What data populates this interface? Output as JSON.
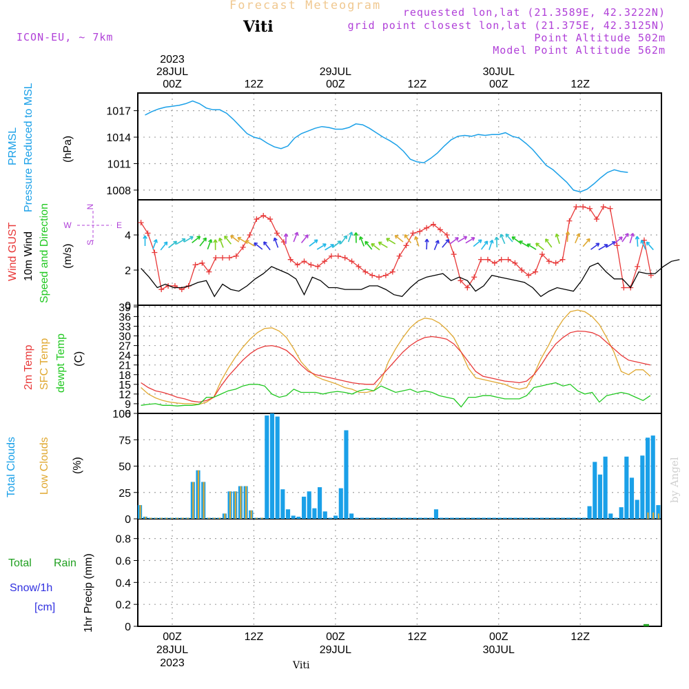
{
  "header": {
    "title": "Forecast Meteogram",
    "station": "Viti",
    "model": "ICON-EU, ~ 7km",
    "requested": "requested lon,lat (21.3589E, 42.3222N)",
    "gridpoint": "grid point closest lon,lat (21.375E, 42.3125N)",
    "point_alt": "Point Altitude 502m",
    "model_alt": "Model Point Altitude 562m",
    "credit": "by Angel",
    "footer_station": "Viti"
  },
  "time_axis": {
    "top": [
      {
        "hour": "00Z",
        "date": "28JUL",
        "year": "2023"
      },
      {
        "hour": "12Z",
        "date": "",
        "year": ""
      },
      {
        "hour": "00Z",
        "date": "29JUL",
        "year": ""
      },
      {
        "hour": "12Z",
        "date": "",
        "year": ""
      },
      {
        "hour": "00Z",
        "date": "30JUL",
        "year": ""
      },
      {
        "hour": "12Z",
        "date": "",
        "year": ""
      }
    ],
    "bottom": [
      {
        "hour": "00Z",
        "date": "28JUL",
        "year": "2023"
      },
      {
        "hour": "12Z",
        "date": "",
        "year": ""
      },
      {
        "hour": "00Z",
        "date": "29JUL",
        "year": ""
      },
      {
        "hour": "12Z",
        "date": "",
        "year": ""
      },
      {
        "hour": "00Z",
        "date": "30JUL",
        "year": ""
      },
      {
        "hour": "12Z",
        "date": "",
        "year": ""
      }
    ]
  },
  "colors": {
    "pressure": "#1aa0e8",
    "gust": "#e83838",
    "wind": "#000000",
    "temp2m": "#e83838",
    "sfctemp": "#e0a830",
    "dewpt": "#20c820",
    "total_cloud": "#1aa0e8",
    "low_cloud": "#e0a830",
    "rain": "#20a020",
    "snow": "#3030e0",
    "grid": "#a0a0a0"
  },
  "panels": {
    "pressure": {
      "label1": "PRMSL",
      "label2": "Pressure Reduced to MSL",
      "unit": "(hPa)"
    },
    "wind": {
      "label1": "Wind GUST",
      "label2": "10m Wind",
      "label3": "Speed and Direction",
      "unit": "(m/s)",
      "compass_n": "N",
      "compass_s": "S",
      "compass_w": "W",
      "compass_e": "E"
    },
    "temp": {
      "label1": "2m Temp",
      "label2": "SFC Temp",
      "label3": "dewpt Temp",
      "unit": "(C)"
    },
    "cloud": {
      "label1": "Total Clouds",
      "label2": "Low Clouds",
      "unit": "(%)"
    },
    "precip": {
      "label1": "Total",
      "label2": "Rain",
      "label3": "Snow/1h",
      "label4": "[cm]",
      "unit": "1hr Precip (mm)"
    }
  },
  "chart_data": [
    {
      "type": "line",
      "title": "PRMSL Pressure Reduced to MSL",
      "ylabel": "(hPa)",
      "ylim": [
        1006.9,
        1019.0
      ],
      "yticks": [
        1008,
        1011,
        1014,
        1017
      ],
      "x_hours": [
        -4,
        -3,
        -2,
        -1,
        0,
        1,
        2,
        3,
        4,
        5,
        6,
        7,
        8,
        9,
        10,
        11,
        12,
        13,
        14,
        15,
        16,
        17,
        18,
        19,
        20,
        21,
        22,
        23,
        24,
        25,
        26,
        27,
        28,
        29,
        30,
        31,
        32,
        33,
        34,
        35,
        36,
        37,
        38,
        39,
        40,
        41,
        42,
        43,
        44,
        45,
        46,
        47,
        48,
        49,
        50,
        51,
        52,
        53,
        54,
        55,
        56,
        57,
        58,
        59,
        60,
        61,
        62,
        63,
        64,
        65,
        66,
        67,
        68,
        69,
        70,
        71,
        72,
        73,
        74,
        75,
        76
      ],
      "series": [
        {
          "name": "PRMSL",
          "values": [
            1016.5,
            1016.9,
            1017.2,
            1017.4,
            1017.5,
            1017.6,
            1017.8,
            1018.1,
            1017.8,
            1017.3,
            1017.1,
            1017.1,
            1016.7,
            1016.0,
            1015.2,
            1014.4,
            1014.0,
            1013.8,
            1013.3,
            1012.9,
            1012.7,
            1013.0,
            1013.9,
            1014.4,
            1014.7,
            1015.0,
            1015.2,
            1015.1,
            1014.9,
            1014.9,
            1015.1,
            1015.5,
            1015.4,
            1015.0,
            1014.5,
            1014.0,
            1013.6,
            1013.1,
            1012.4,
            1011.5,
            1011.2,
            1011.1,
            1011.6,
            1012.2,
            1013.0,
            1013.7,
            1014.1,
            1014.2,
            1014.1,
            1014.3,
            1014.2,
            1014.3,
            1014.3,
            1014.5,
            1014.1,
            1013.9,
            1013.3,
            1012.6,
            1011.7,
            1010.8,
            1010.3,
            1009.6,
            1008.9,
            1008.0,
            1007.8,
            1008.1,
            1008.7,
            1009.4,
            1010.0,
            1010.3,
            1010.1,
            1010.0
          ]
        }
      ]
    },
    {
      "type": "line",
      "title": "Wind GUST / 10m Wind Speed and Direction",
      "ylabel": "(m/s)",
      "ylim": [
        0,
        6.0
      ],
      "yticks": [
        0,
        2,
        4
      ],
      "series": [
        {
          "name": "Wind GUST",
          "values": [
            4.7,
            4.1,
            3.0,
            0.9,
            1.1,
            1.1,
            0.9,
            1.1,
            2.3,
            2.4,
            1.9,
            2.7,
            2.7,
            2.7,
            2.8,
            3.3,
            4.0,
            4.9,
            5.1,
            4.9,
            4.1,
            3.6,
            2.6,
            2.3,
            2.5,
            2.3,
            2.2,
            2.5,
            2.8,
            2.8,
            2.7,
            2.5,
            2.2,
            1.9,
            1.7,
            1.6,
            1.7,
            1.9,
            2.8,
            3.4,
            4.1,
            4.2,
            4.4,
            4.6,
            4.3,
            4.0,
            2.9,
            1.4,
            1.0,
            1.6,
            2.6,
            2.6,
            2.4,
            2.6,
            2.6,
            2.4,
            2.0,
            1.7,
            1.9,
            2.9,
            2.5,
            2.4,
            2.6,
            4.8,
            5.6,
            5.6,
            5.5,
            4.9,
            5.6,
            5.5,
            3.4,
            1.0,
            1.0,
            2.2,
            3.7,
            1.7
          ]
        },
        {
          "name": "10m Wind",
          "values": [
            2.1,
            1.6,
            1.0,
            1.2,
            1.0,
            1.0,
            1.1,
            1.3,
            1.4,
            0.5,
            1.2,
            0.9,
            0.8,
            1.1,
            1.5,
            1.8,
            2.2,
            2.0,
            1.8,
            1.5,
            0.6,
            1.6,
            1.4,
            1.0,
            1.0,
            0.9,
            0.9,
            0.9,
            1.1,
            1.1,
            0.9,
            0.6,
            0.5,
            1.0,
            1.4,
            1.6,
            1.7,
            1.8,
            1.4,
            1.6,
            1.4,
            0.8,
            1.1,
            1.7,
            1.6,
            1.5,
            1.4,
            1.3,
            1.0,
            0.5,
            0.8,
            1.0,
            0.9,
            0.8,
            1.4,
            2.2,
            2.4,
            1.9,
            1.5,
            1.5,
            1.0,
            1.9,
            1.8,
            1.8,
            2.2,
            2.5,
            2.6
          ]
        }
      ]
    },
    {
      "type": "line",
      "title": "2m Temp / SFC Temp / dewpt Temp",
      "ylabel": "(C)",
      "ylim": [
        6,
        39.5
      ],
      "yticks": [
        6,
        9,
        12,
        15,
        18,
        21,
        24,
        27,
        30,
        33,
        36,
        39
      ],
      "series": [
        {
          "name": "2m Temp",
          "values": [
            15.5,
            14.0,
            13.0,
            12.5,
            11.8,
            11.0,
            10.5,
            9.8,
            9.5,
            10.0,
            11.0,
            14.5,
            17.5,
            20.0,
            22.5,
            24.5,
            26.0,
            26.8,
            27.0,
            26.5,
            25.5,
            23.5,
            21.0,
            19.0,
            18.0,
            17.5,
            17.0,
            16.5,
            16.0,
            15.5,
            15.2,
            15.0,
            15.0,
            17.5,
            20.0,
            22.5,
            25.0,
            27.0,
            28.5,
            29.5,
            29.8,
            29.5,
            29.0,
            27.5,
            25.0,
            22.0,
            19.0,
            17.5,
            17.0,
            16.5,
            16.0,
            15.8,
            15.5,
            16.0,
            18.0,
            21.0,
            24.5,
            27.5,
            29.5,
            31.0,
            31.5,
            31.4,
            31.0,
            30.0,
            28.0,
            26.0,
            24.0,
            22.5,
            22.0,
            21.5,
            21.0
          ]
        },
        {
          "name": "SFC Temp",
          "values": [
            14.0,
            12.0,
            10.8,
            10.0,
            9.5,
            9.2,
            9.0,
            9.0,
            8.8,
            9.5,
            11.0,
            16.0,
            20.0,
            23.5,
            26.5,
            29.0,
            31.0,
            32.3,
            32.5,
            31.5,
            29.5,
            26.0,
            22.0,
            19.5,
            17.5,
            16.5,
            15.8,
            15.0,
            14.0,
            13.5,
            12.5,
            12.5,
            13.0,
            16.0,
            22.0,
            26.0,
            29.5,
            32.5,
            34.5,
            35.5,
            35.2,
            34.0,
            32.0,
            29.5,
            25.0,
            20.0,
            17.0,
            16.5,
            16.0,
            15.5,
            15.0,
            14.0,
            13.5,
            14.0,
            18.0,
            23.0,
            27.0,
            31.5,
            35.0,
            37.5,
            38.0,
            37.5,
            36.0,
            33.5,
            29.5,
            25.0,
            19.0,
            18.0,
            19.5,
            19.5,
            17.5
          ]
        },
        {
          "name": "dewpt Temp",
          "values": [
            8.5,
            8.8,
            9.0,
            8.5,
            8.5,
            8.3,
            8.5,
            8.5,
            8.8,
            11.0,
            11.0,
            12.0,
            13.0,
            13.5,
            14.5,
            15.0,
            15.0,
            14.5,
            12.0,
            11.0,
            11.5,
            13.5,
            12.5,
            12.5,
            12.5,
            12.0,
            12.5,
            12.8,
            12.5,
            12.0,
            13.0,
            13.5,
            13.0,
            14.5,
            13.5,
            12.5,
            13.0,
            13.5,
            12.5,
            13.0,
            12.5,
            11.5,
            11.0,
            10.5,
            8.0,
            11.0,
            11.0,
            11.5,
            11.5,
            11.0,
            10.5,
            10.5,
            10.5,
            11.5,
            14.0,
            14.5,
            15.0,
            15.5,
            14.5,
            15.0,
            13.0,
            12.0,
            12.5,
            9.5,
            11.5,
            12.0,
            12.5,
            12.0,
            11.0,
            10.0,
            11.5
          ]
        }
      ]
    },
    {
      "type": "bar",
      "title": "Total Clouds / Low Clouds",
      "ylabel": "(%)",
      "ylim": [
        0,
        100
      ],
      "yticks": [
        0,
        25,
        50,
        75,
        100
      ],
      "series": [
        {
          "name": "Total Clouds",
          "values": [
            13,
            2,
            1,
            1,
            1,
            1,
            1,
            1,
            1,
            1,
            35,
            46,
            35,
            1,
            1,
            1,
            5,
            26,
            26,
            31,
            31,
            8,
            1,
            1,
            98,
            100,
            97,
            28,
            9,
            3,
            2,
            21,
            26,
            10,
            30,
            7,
            1,
            3,
            29,
            84,
            5,
            1,
            1,
            1,
            1,
            1,
            1,
            1,
            1,
            1,
            1,
            1,
            1,
            1,
            1,
            1,
            9,
            1,
            1,
            1,
            1,
            1,
            1,
            1,
            1,
            1,
            1,
            1,
            1,
            1,
            1,
            1,
            1,
            1,
            1,
            1,
            1,
            1,
            1,
            1,
            1,
            1,
            1,
            1,
            1,
            12,
            54,
            42,
            59,
            5,
            1,
            11,
            59,
            39,
            18,
            60,
            77,
            79,
            13
          ]
        },
        {
          "name": "Low Clouds",
          "values": [
            13,
            2,
            1,
            1,
            1,
            1,
            1,
            1,
            1,
            1,
            35,
            46,
            35,
            1,
            1,
            1,
            5,
            26,
            26,
            31,
            31,
            8,
            1,
            1,
            0,
            0,
            0,
            0,
            0,
            0,
            0,
            0,
            0,
            0,
            0,
            0,
            0,
            0,
            0,
            0,
            0,
            0,
            0,
            0,
            0,
            0,
            0,
            0,
            0,
            0,
            0,
            0,
            0,
            0,
            0,
            0,
            0,
            0,
            0,
            0,
            0,
            0,
            0,
            0,
            0,
            0,
            0,
            0,
            0,
            0,
            0,
            0,
            0,
            0,
            0,
            0,
            0,
            0,
            0,
            0,
            0,
            0,
            0,
            0,
            0,
            0,
            0,
            0,
            0,
            0,
            0,
            0,
            0,
            0,
            0,
            0,
            6,
            6,
            5
          ]
        }
      ]
    },
    {
      "type": "bar",
      "title": "1hr Precip",
      "ylabel": "1hr Precip (mm)",
      "ylim": [
        0,
        0.98
      ],
      "yticks": [
        0,
        0.2,
        0.4,
        0.6,
        0.8
      ],
      "series": [
        {
          "name": "Total Rain",
          "values": [
            0.02
          ]
        },
        {
          "name": "Snow/1h",
          "values": [
            0
          ]
        }
      ]
    }
  ]
}
